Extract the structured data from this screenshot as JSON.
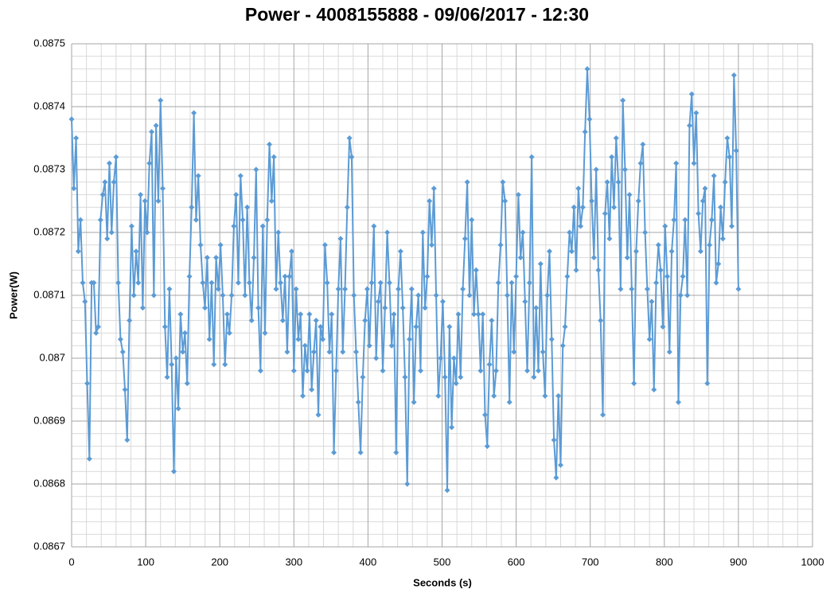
{
  "chart_data": {
    "type": "line",
    "title": "Power - 4008155888 - 09/06/2017 - 12:30",
    "x_label": "Seconds (s)",
    "y_label": "Power(W)",
    "color": "#5b9bd5",
    "grid": true,
    "minor_grid": true,
    "markers": "diamond",
    "xlim": [
      0,
      1000
    ],
    "xticks": [
      0,
      100,
      200,
      300,
      400,
      500,
      600,
      700,
      800,
      900,
      1000
    ],
    "ylim": [
      0.0867,
      0.0875
    ],
    "yticks": [
      0.0867,
      0.0868,
      0.0869,
      0.087,
      0.0871,
      0.0872,
      0.0873,
      0.0874,
      0.0875
    ],
    "x": [
      0,
      3,
      6,
      9,
      12,
      15,
      18,
      21,
      24,
      27,
      30,
      33,
      36,
      39,
      42,
      45,
      48,
      51,
      54,
      57,
      60,
      63,
      66,
      69,
      72,
      75,
      78,
      81,
      84,
      87,
      90,
      93,
      96,
      99,
      102,
      105,
      108,
      111,
      114,
      117,
      120,
      123,
      126,
      129,
      132,
      135,
      138,
      141,
      144,
      147,
      150,
      153,
      156,
      159,
      162,
      165,
      168,
      171,
      174,
      177,
      180,
      183,
      186,
      189,
      192,
      195,
      198,
      201,
      204,
      207,
      210,
      213,
      216,
      219,
      222,
      225,
      228,
      231,
      234,
      237,
      240,
      243,
      246,
      249,
      252,
      255,
      258,
      261,
      264,
      267,
      270,
      273,
      276,
      279,
      282,
      285,
      288,
      291,
      294,
      297,
      300,
      303,
      306,
      309,
      312,
      315,
      318,
      321,
      324,
      327,
      330,
      333,
      336,
      339,
      342,
      345,
      348,
      351,
      354,
      357,
      360,
      363,
      366,
      369,
      372,
      375,
      378,
      381,
      384,
      387,
      390,
      393,
      396,
      399,
      402,
      405,
      408,
      411,
      414,
      417,
      420,
      423,
      426,
      429,
      432,
      435,
      438,
      441,
      444,
      447,
      450,
      453,
      456,
      459,
      462,
      465,
      468,
      471,
      474,
      477,
      480,
      483,
      486,
      489,
      492,
      495,
      498,
      501,
      504,
      507,
      510,
      513,
      516,
      519,
      522,
      525,
      528,
      531,
      534,
      537,
      540,
      543,
      546,
      549,
      552,
      555,
      558,
      561,
      564,
      567,
      570,
      573,
      576,
      579,
      582,
      585,
      588,
      591,
      594,
      597,
      600,
      603,
      606,
      609,
      612,
      615,
      618,
      621,
      624,
      627,
      630,
      633,
      636,
      639,
      642,
      645,
      648,
      651,
      654,
      657,
      660,
      663,
      666,
      669,
      672,
      675,
      678,
      681,
      684,
      687,
      690,
      693,
      696,
      699,
      702,
      705,
      708,
      711,
      714,
      717,
      720,
      723,
      726,
      729,
      732,
      735,
      738,
      741,
      744,
      747,
      750,
      753,
      756,
      759,
      762,
      765,
      768,
      771,
      774,
      777,
      780,
      783,
      786,
      789,
      792,
      795,
      798,
      801,
      804,
      807,
      810,
      813,
      816,
      819,
      822,
      825,
      828,
      831,
      834,
      837,
      840,
      843,
      846,
      849,
      852,
      855,
      858,
      861,
      864,
      867,
      870,
      873,
      876,
      879,
      882,
      885,
      888,
      891,
      894,
      897,
      900
    ],
    "values": [
      0.08738,
      0.08727,
      0.08735,
      0.08717,
      0.08722,
      0.08712,
      0.08709,
      0.08696,
      0.08684,
      0.08712,
      0.08712,
      0.08704,
      0.08705,
      0.08722,
      0.08726,
      0.08728,
      0.08719,
      0.08731,
      0.0872,
      0.08728,
      0.08732,
      0.08712,
      0.08703,
      0.08701,
      0.08695,
      0.08687,
      0.08706,
      0.08721,
      0.0871,
      0.08717,
      0.08712,
      0.08726,
      0.08708,
      0.08725,
      0.0872,
      0.08731,
      0.08736,
      0.0871,
      0.08737,
      0.08725,
      0.08741,
      0.08727,
      0.08705,
      0.08697,
      0.08711,
      0.08699,
      0.08682,
      0.087,
      0.08692,
      0.08707,
      0.08701,
      0.08704,
      0.08696,
      0.08713,
      0.08724,
      0.08739,
      0.08722,
      0.08729,
      0.08718,
      0.08712,
      0.08708,
      0.08716,
      0.08703,
      0.08712,
      0.08699,
      0.08716,
      0.08711,
      0.08718,
      0.0871,
      0.08699,
      0.08707,
      0.08704,
      0.0871,
      0.08721,
      0.08726,
      0.08712,
      0.08729,
      0.08722,
      0.0871,
      0.08724,
      0.08712,
      0.08706,
      0.08716,
      0.0873,
      0.08708,
      0.08698,
      0.08721,
      0.08704,
      0.08722,
      0.08734,
      0.08725,
      0.08732,
      0.08711,
      0.0872,
      0.08712,
      0.08706,
      0.08713,
      0.08701,
      0.08713,
      0.08717,
      0.08698,
      0.08711,
      0.08703,
      0.08707,
      0.08694,
      0.08702,
      0.08698,
      0.08707,
      0.08695,
      0.08701,
      0.08706,
      0.08691,
      0.08705,
      0.08703,
      0.08718,
      0.08712,
      0.08701,
      0.08707,
      0.08685,
      0.08698,
      0.08711,
      0.08719,
      0.08701,
      0.08711,
      0.08724,
      0.08735,
      0.08732,
      0.0871,
      0.08701,
      0.08693,
      0.08685,
      0.08697,
      0.08706,
      0.08711,
      0.08702,
      0.08712,
      0.08721,
      0.087,
      0.08709,
      0.08712,
      0.08698,
      0.08708,
      0.0872,
      0.08712,
      0.08702,
      0.08707,
      0.08685,
      0.08711,
      0.08717,
      0.08708,
      0.08697,
      0.0868,
      0.08703,
      0.08711,
      0.08693,
      0.08705,
      0.0871,
      0.08698,
      0.0872,
      0.08708,
      0.08713,
      0.08725,
      0.08718,
      0.08727,
      0.0871,
      0.08694,
      0.087,
      0.08709,
      0.08697,
      0.08679,
      0.08705,
      0.08689,
      0.087,
      0.08696,
      0.08707,
      0.08697,
      0.08711,
      0.08719,
      0.08728,
      0.0871,
      0.08722,
      0.08707,
      0.08714,
      0.08707,
      0.08698,
      0.08707,
      0.08691,
      0.08686,
      0.08699,
      0.08706,
      0.08694,
      0.08698,
      0.08712,
      0.08718,
      0.08728,
      0.08725,
      0.0871,
      0.08693,
      0.08712,
      0.08701,
      0.08713,
      0.08726,
      0.08716,
      0.0872,
      0.08709,
      0.08698,
      0.08712,
      0.08732,
      0.08697,
      0.08708,
      0.08698,
      0.08715,
      0.08701,
      0.08694,
      0.0871,
      0.08717,
      0.08703,
      0.08687,
      0.08681,
      0.08694,
      0.08683,
      0.08702,
      0.08705,
      0.08713,
      0.0872,
      0.08717,
      0.08724,
      0.08714,
      0.08727,
      0.08721,
      0.08724,
      0.08736,
      0.08746,
      0.08738,
      0.08725,
      0.08716,
      0.0873,
      0.08714,
      0.08706,
      0.08691,
      0.08723,
      0.08728,
      0.08719,
      0.08732,
      0.08724,
      0.08735,
      0.08728,
      0.08711,
      0.08741,
      0.0873,
      0.08716,
      0.08726,
      0.08711,
      0.08696,
      0.08717,
      0.08725,
      0.08731,
      0.08734,
      0.0872,
      0.08711,
      0.08703,
      0.08709,
      0.08695,
      0.08712,
      0.08718,
      0.08714,
      0.08705,
      0.08721,
      0.08713,
      0.08701,
      0.08717,
      0.08722,
      0.08731,
      0.08693,
      0.0871,
      0.08713,
      0.08722,
      0.0871,
      0.08737,
      0.08742,
      0.08731,
      0.08739,
      0.08723,
      0.08717,
      0.08725,
      0.08727,
      0.08696,
      0.08718,
      0.08722,
      0.08729,
      0.08712,
      0.08715,
      0.08724,
      0.08719,
      0.08728,
      0.08735,
      0.08732,
      0.08721,
      0.08745,
      0.08733,
      0.08711
    ]
  }
}
